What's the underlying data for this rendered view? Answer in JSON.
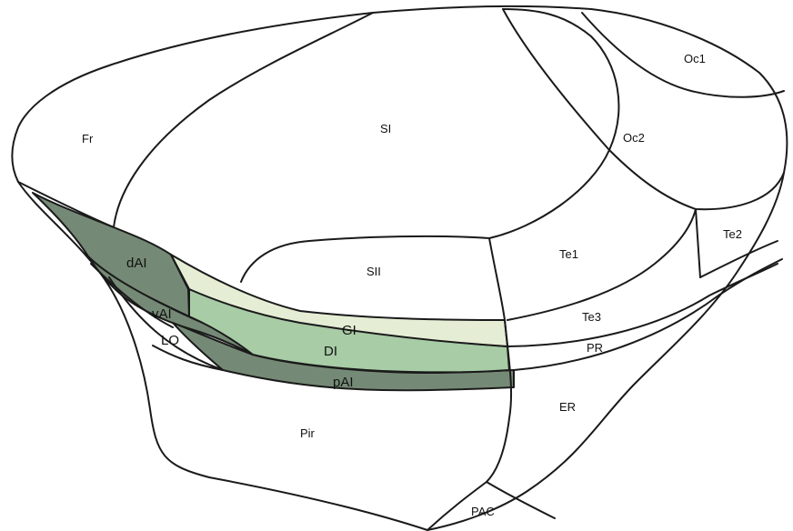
{
  "colors": {
    "dark_insula": "#758a76",
    "mid_insula": "#a8cca6",
    "light_insula": "#e5eed5",
    "outline": "#1a1a1a",
    "background": "#ffffff"
  },
  "regions": {
    "fr": "Fr",
    "si": "SI",
    "sii": "SII",
    "oc1": "Oc1",
    "oc2": "Oc2",
    "te1": "Te1",
    "te2": "Te2",
    "te3": "Te3",
    "pr": "PR",
    "er": "ER",
    "pir": "Pir",
    "pac": "PAC",
    "lo": "LO",
    "dai": "dAI",
    "vai": "vAI",
    "pai": "pAI",
    "gi": "GI",
    "di": "DI"
  }
}
